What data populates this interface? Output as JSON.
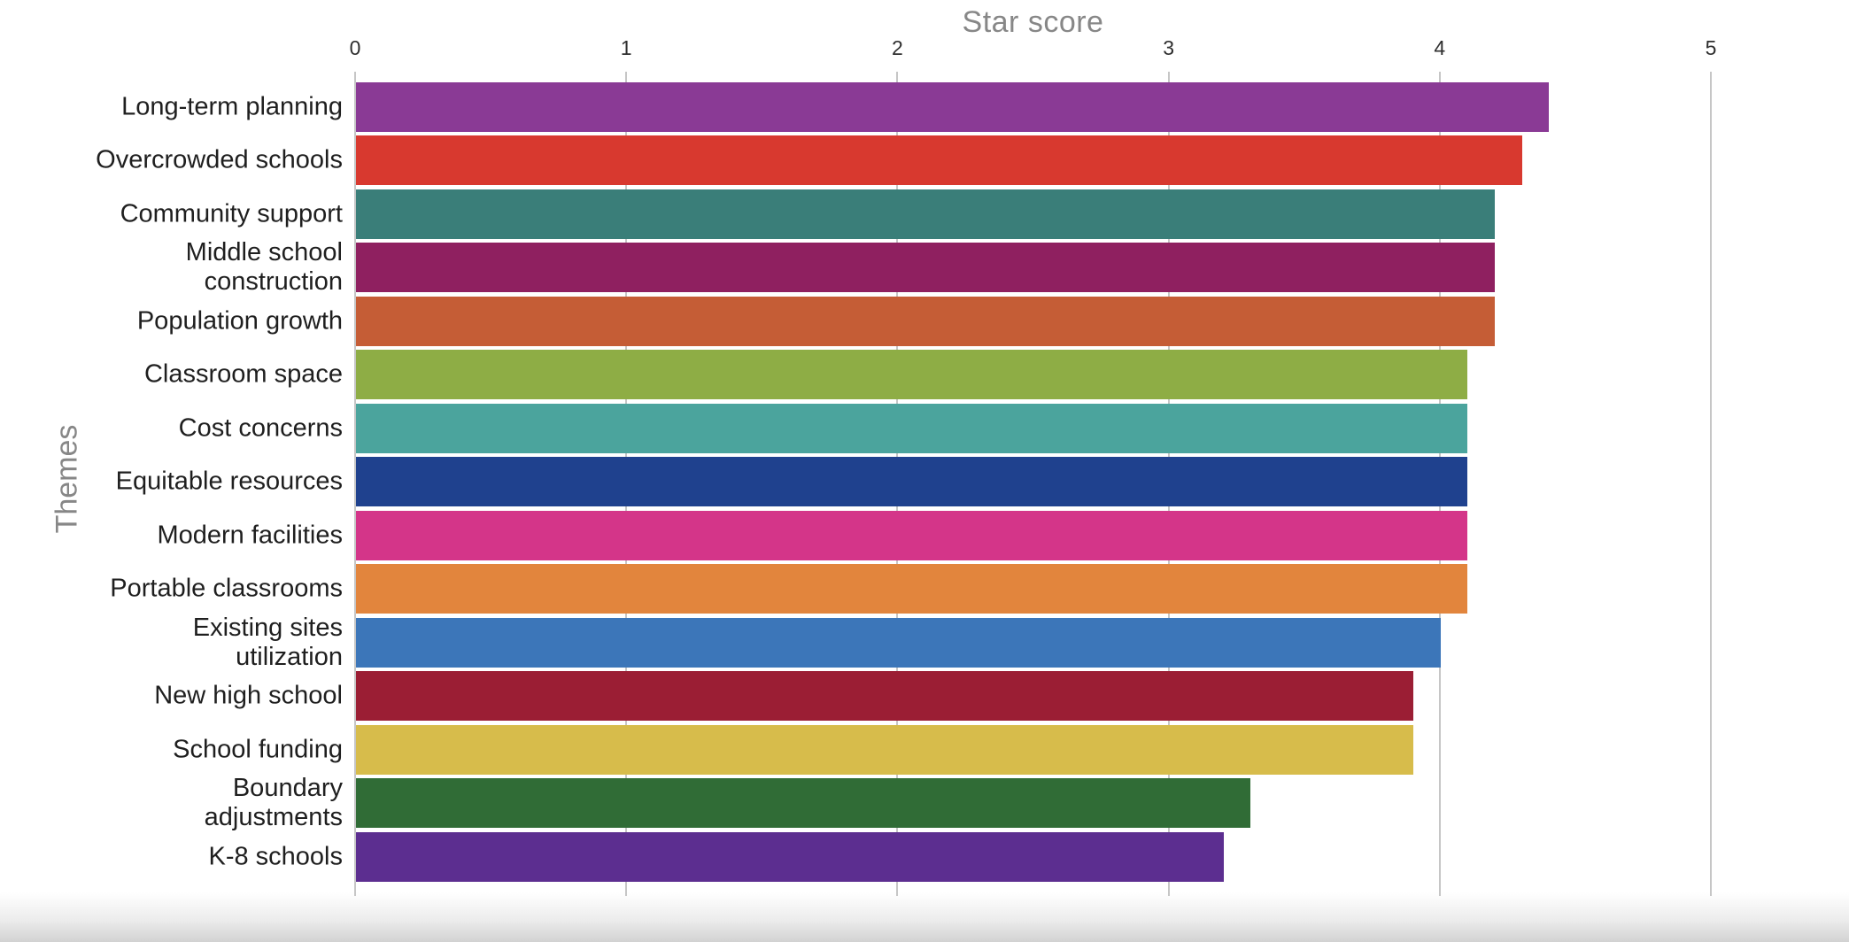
{
  "chart_data": {
    "type": "bar",
    "orientation": "horizontal",
    "title": "Star score",
    "ylabel": "Themes",
    "xlim": [
      0,
      5
    ],
    "x_ticks": [
      "0",
      "1",
      "2",
      "3",
      "4",
      "5"
    ],
    "grid": "vertical",
    "legend": "none",
    "categories": [
      "Long-term planning",
      "Overcrowded schools",
      "Community support",
      "Middle school\nconstruction",
      "Population growth",
      "Classroom space",
      "Cost concerns",
      "Equitable resources",
      "Modern facilities",
      "Portable classrooms",
      "Existing sites\nutilization",
      "New high school",
      "School funding",
      "Boundary\nadjustments",
      "K-8 schools"
    ],
    "values": [
      4.4,
      4.3,
      4.2,
      4.2,
      4.2,
      4.1,
      4.1,
      4.1,
      4.1,
      4.1,
      4.0,
      3.9,
      3.9,
      3.3,
      3.2
    ],
    "bar_colors": [
      "#8a3a95",
      "#d8392f",
      "#3a7e79",
      "#8f2060",
      "#c55d36",
      "#8ead45",
      "#4ba49d",
      "#1f418e",
      "#d43589",
      "#e2853d",
      "#3c76b9",
      "#9b1e34",
      "#d7bc4b",
      "#306c36",
      "#5c2e90"
    ]
  },
  "styles": {
    "grid_color": "#c6c6c6",
    "title_color": "#878787",
    "tick_label_color": "#2e2e2e",
    "category_label_color": "#1f1f1f",
    "background": "#ffffff"
  }
}
